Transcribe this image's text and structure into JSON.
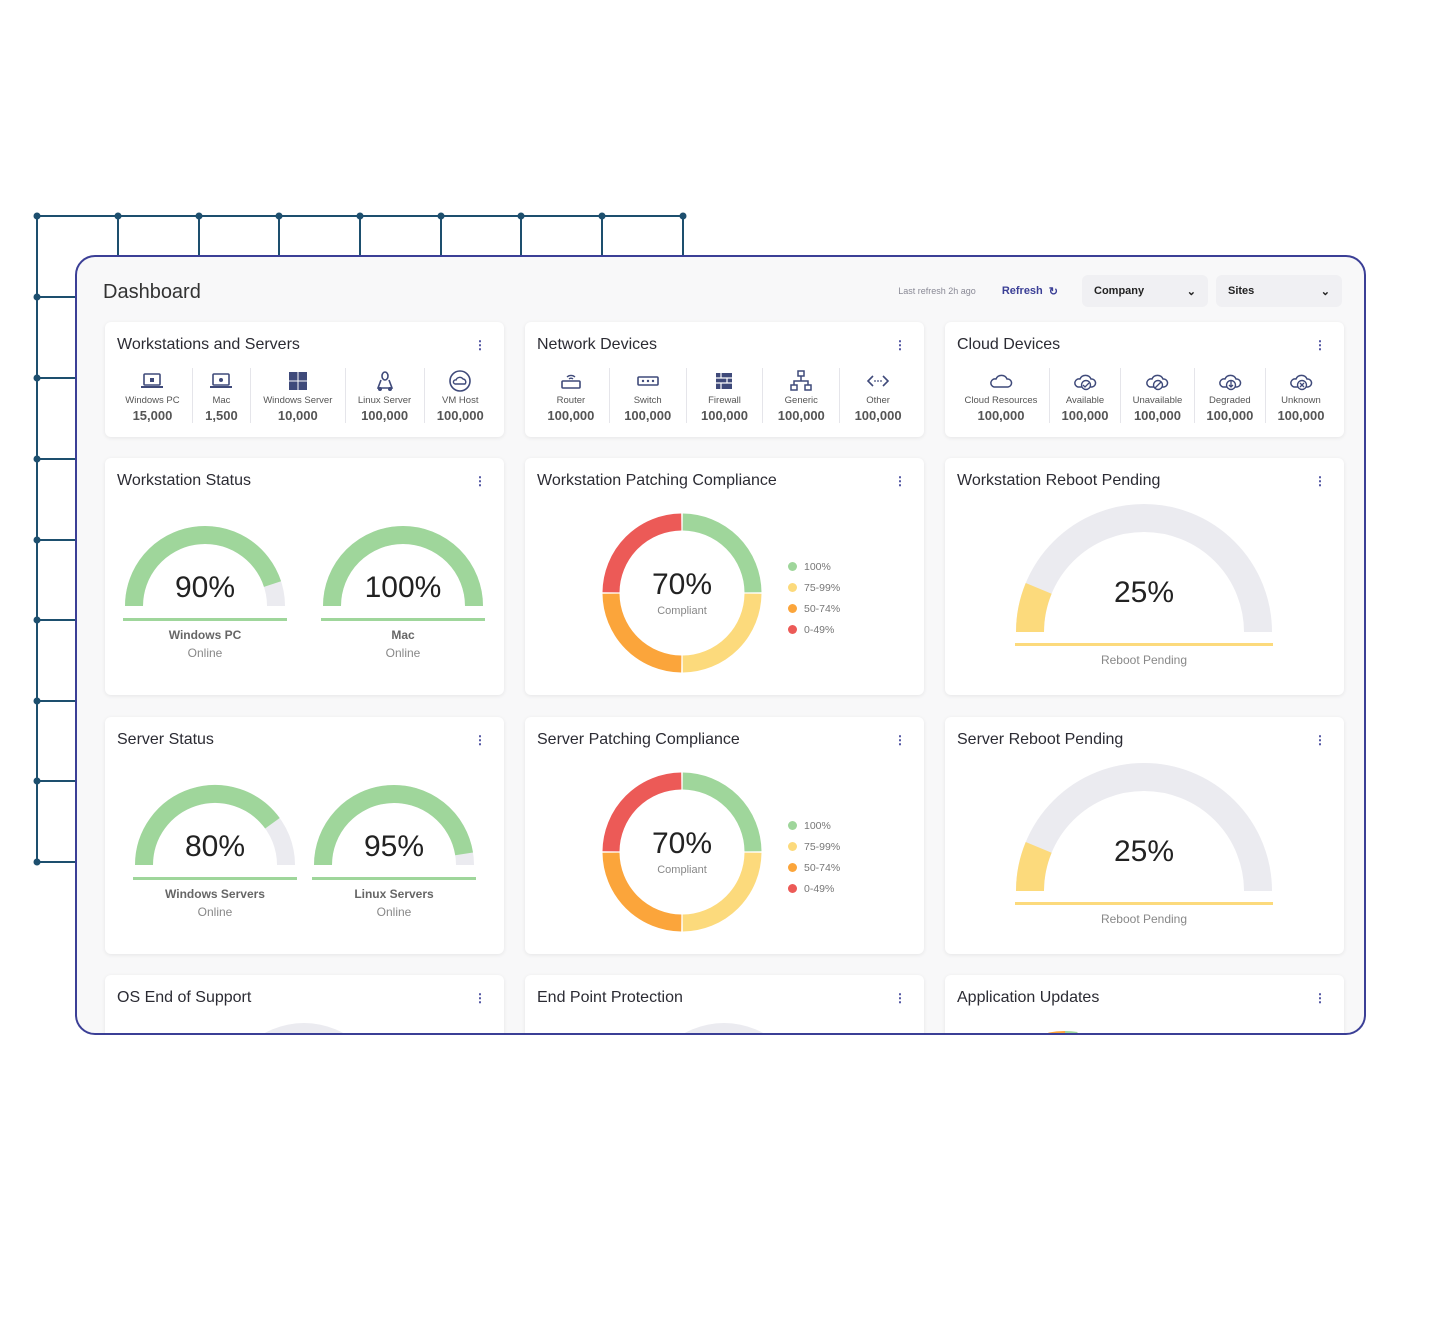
{
  "colors": {
    "frame": "#3b3f96",
    "deco": "#1d4f6e",
    "green": "#9fd69b",
    "yellow": "#fcda7c",
    "orange": "#fba53b",
    "red": "#ec5a57",
    "track": "#ebebf0",
    "icon": "#3f4a7a"
  },
  "header": {
    "title": "Dashboard",
    "last_refresh": "Last refresh 2h ago",
    "refresh_label": "Refresh",
    "company": "Company",
    "sites": "Sites"
  },
  "counts": [
    {
      "title": "Workstations and Servers",
      "items": [
        {
          "icon": "laptop-windows",
          "label": "Windows PC",
          "value": "15,000"
        },
        {
          "icon": "laptop-apple",
          "label": "Mac",
          "value": "1,500"
        },
        {
          "icon": "windows",
          "label": "Windows Server",
          "value": "10,000"
        },
        {
          "icon": "linux",
          "label": "Linux Server",
          "value": "100,000"
        },
        {
          "icon": "cloud-circle",
          "label": "VM Host",
          "value": "100,000"
        }
      ]
    },
    {
      "title": "Network Devices",
      "items": [
        {
          "icon": "router",
          "label": "Router",
          "value": "100,000"
        },
        {
          "icon": "switch",
          "label": "Switch",
          "value": "100,000"
        },
        {
          "icon": "firewall",
          "label": "Firewall",
          "value": "100,000"
        },
        {
          "icon": "hierarchy",
          "label": "Generic",
          "value": "100,000"
        },
        {
          "icon": "code",
          "label": "Other",
          "value": "100,000"
        }
      ]
    },
    {
      "title": "Cloud Devices",
      "items": [
        {
          "icon": "cloud",
          "label": "Cloud Resources",
          "value": "100,000"
        },
        {
          "icon": "cloud-check",
          "label": "Available",
          "value": "100,000"
        },
        {
          "icon": "cloud-block",
          "label": "Unavailable",
          "value": "100,000"
        },
        {
          "icon": "cloud-download",
          "label": "Degraded",
          "value": "100,000"
        },
        {
          "icon": "cloud-x",
          "label": "Unknown",
          "value": "100,000"
        }
      ]
    }
  ],
  "status": [
    {
      "title": "Workstation Status",
      "gauges": [
        {
          "percent": 90,
          "text": "90%",
          "label": "Windows PC",
          "sub": "Online"
        },
        {
          "percent": 100,
          "text": "100%",
          "label": "Mac",
          "sub": "Online"
        }
      ]
    },
    {
      "title": "Server Status",
      "gauges": [
        {
          "percent": 80,
          "text": "80%",
          "label": "Windows Servers",
          "sub": "Online"
        },
        {
          "percent": 95,
          "text": "95%",
          "label": "Linux Servers",
          "sub": "Online"
        }
      ]
    }
  ],
  "compliance": [
    {
      "title": "Workstation Patching Compliance",
      "value": "70%",
      "caption": "Compliant",
      "segments": [
        {
          "label": "100%",
          "share": 25,
          "color": "#9fd69b"
        },
        {
          "label": "75-99%",
          "share": 25,
          "color": "#fcda7c"
        },
        {
          "label": "50-74%",
          "share": 25,
          "color": "#fba53b"
        },
        {
          "label": "0-49%",
          "share": 25,
          "color": "#ec5a57"
        }
      ]
    },
    {
      "title": "Server Patching Compliance",
      "value": "70%",
      "caption": "Compliant",
      "segments": [
        {
          "label": "100%",
          "share": 25,
          "color": "#9fd69b"
        },
        {
          "label": "75-99%",
          "share": 25,
          "color": "#fcda7c"
        },
        {
          "label": "50-74%",
          "share": 25,
          "color": "#fba53b"
        },
        {
          "label": "0-49%",
          "share": 25,
          "color": "#ec5a57"
        }
      ]
    }
  ],
  "reboot": [
    {
      "title": "Workstation Reboot Pending",
      "percent": 25,
      "text": "25%",
      "caption": "Reboot Pending"
    },
    {
      "title": "Server Reboot Pending",
      "percent": 25,
      "text": "25%",
      "caption": "Reboot Pending"
    }
  ],
  "bottom": [
    {
      "title": "OS End of Support"
    },
    {
      "title": "End Point Protection"
    },
    {
      "title": "Application Updates"
    }
  ]
}
